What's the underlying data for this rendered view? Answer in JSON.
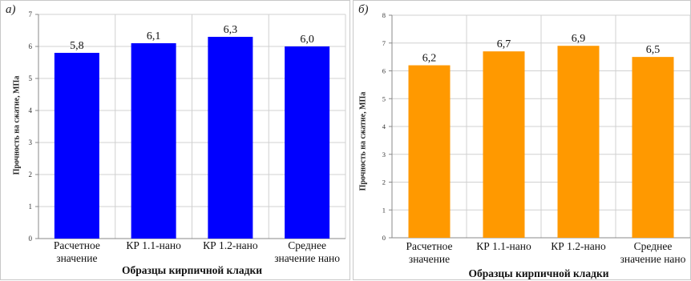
{
  "chart_data": [
    {
      "type": "bar",
      "panel_label": "а)",
      "categories": [
        [
          "Расчетное",
          "значение"
        ],
        [
          "КР 1.1-нано"
        ],
        [
          "КР 1.2-нано"
        ],
        [
          "Среднее",
          "значение нано"
        ]
      ],
      "values": [
        5.8,
        6.1,
        6.3,
        6.0
      ],
      "data_labels": [
        "5,8",
        "6,1",
        "6,3",
        "6,0"
      ],
      "xlabel": "Образцы кирпичной кладки",
      "ylabel": "Прочность на сжатие, МПа",
      "ylim": [
        0,
        7
      ],
      "yticks": [
        "0",
        "1",
        "2",
        "3",
        "4",
        "5",
        "6",
        "7"
      ],
      "bar_color": "#0000ff",
      "grid": true
    },
    {
      "type": "bar",
      "panel_label": "б)",
      "categories": [
        [
          "Расчетное",
          "значение"
        ],
        [
          "КР 1.1-нано"
        ],
        [
          "КР 1.2-нано"
        ],
        [
          "Среднее",
          "значение нано"
        ]
      ],
      "values": [
        6.2,
        6.7,
        6.9,
        6.5
      ],
      "data_labels": [
        "6,2",
        "6,7",
        "6,9",
        "6,5"
      ],
      "xlabel": "Образцы кирпичной кладки",
      "ylabel": "Прочность на сжатие, МПа",
      "ylim": [
        0,
        8
      ],
      "yticks": [
        "0",
        "1",
        "2",
        "3",
        "4",
        "5",
        "6",
        "7",
        "8"
      ],
      "bar_color": "#ff9900",
      "grid": true
    }
  ]
}
